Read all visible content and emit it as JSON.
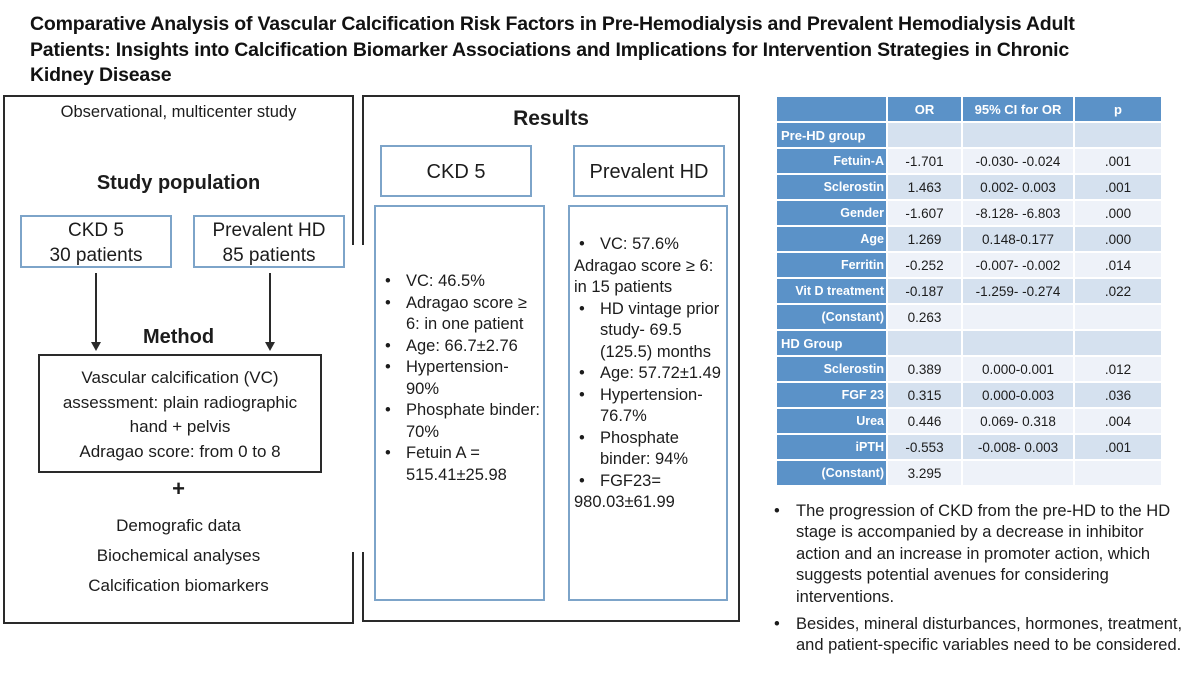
{
  "title_lines": [
    "Comparative Analysis of Vascular Calcification Risk Factors in Pre-Hemodialysis and Prevalent Hemodialysis Adult",
    "Patients: Insights into Calcification Biomarker Associations and Implications for Intervention Strategies in Chronic",
    "Kidney Disease"
  ],
  "left_panel": {
    "subtitle": "Observational, multicenter study",
    "study_population_heading": "Study population",
    "group_boxes": [
      {
        "line1": "CKD 5",
        "line2": "30 patients"
      },
      {
        "line1": "Prevalent HD",
        "line2": "85 patients"
      }
    ],
    "method_heading": "Method",
    "method_box_lines": [
      "Vascular calcification (VC)",
      "assessment: plain radiographic",
      "hand + pelvis",
      "Adragao score:  from 0 to 8"
    ],
    "plus_sign": "+",
    "additional_items": [
      "Demografic data",
      "Biochemical analyses",
      "Calcification biomarkers"
    ]
  },
  "results_panel": {
    "heading": "Results",
    "columns": [
      {
        "header": "CKD 5",
        "items": [
          {
            "bullet": true,
            "text": "VC: 46.5%"
          },
          {
            "bullet": true,
            "text": "Adragao score ≥ 6: in one patient"
          },
          {
            "bullet": true,
            "text": "Age: 66.7±2.76"
          },
          {
            "bullet": true,
            "text": "Hypertension-90%"
          },
          {
            "bullet": true,
            "text": "Phosphate binder: 70%"
          },
          {
            "bullet": true,
            "text": "Fetuin A = 515.41±25.98"
          }
        ]
      },
      {
        "header": "Prevalent HD",
        "items": [
          {
            "bullet": true,
            "text": "VC: 57.6%"
          },
          {
            "bullet": false,
            "text": "Adragao score ≥ 6: in 15 patients"
          },
          {
            "bullet": true,
            "text": "HD vintage prior study- 69.5 (125.5) months"
          },
          {
            "bullet": true,
            "text": "Age: 57.72±1.49"
          },
          {
            "bullet": true,
            "text": "Hypertension- 76.7%"
          },
          {
            "bullet": true,
            "text": "Phosphate binder: 94%"
          },
          {
            "bullet": true,
            "text": "FGF23="
          },
          {
            "bullet": false,
            "text": "980.03±61.99"
          }
        ]
      }
    ]
  },
  "table": {
    "headers": [
      "",
      "OR",
      "95% CI for OR",
      "p"
    ],
    "rows": [
      {
        "type": "section",
        "label": "Pre-HD group",
        "or": "",
        "ci": "",
        "p": ""
      },
      {
        "type": "data",
        "label": "Fetuin-A",
        "or": "-1.701",
        "ci": "-0.030- -0.024",
        "p": ".001"
      },
      {
        "type": "data",
        "label": "Sclerostin",
        "or": "1.463",
        "ci": "0.002- 0.003",
        "p": ".001"
      },
      {
        "type": "data",
        "label": "Gender",
        "or": "-1.607",
        "ci": "-8.128- -6.803",
        "p": ".000"
      },
      {
        "type": "data",
        "label": "Age",
        "or": "1.269",
        "ci": "0.148-0.177",
        "p": ".000"
      },
      {
        "type": "data",
        "label": "Ferritin",
        "or": "-0.252",
        "ci": "-0.007- -0.002",
        "p": ".014"
      },
      {
        "type": "data",
        "label": "Vit D treatment",
        "or": "-0.187",
        "ci": "-1.259- -0.274",
        "p": ".022"
      },
      {
        "type": "data",
        "label": "(Constant)",
        "or": "0.263",
        "ci": "",
        "p": ""
      },
      {
        "type": "section",
        "label": "HD Group",
        "or": "",
        "ci": "",
        "p": ""
      },
      {
        "type": "data",
        "label": "Sclerostin",
        "or": "0.389",
        "ci": "0.000-0.001",
        "p": ".012"
      },
      {
        "type": "data",
        "label": "FGF 23",
        "or": "0.315",
        "ci": "0.000-0.003",
        "p": ".036"
      },
      {
        "type": "data",
        "label": "Urea",
        "or": "0.446",
        "ci": "0.069- 0.318",
        "p": ".004"
      },
      {
        "type": "data",
        "label": "iPTH",
        "or": "-0.553",
        "ci": "-0.008- 0.003",
        "p": ".001"
      },
      {
        "type": "data",
        "label": "(Constant)",
        "or": "3.295",
        "ci": "",
        "p": ""
      }
    ]
  },
  "conclusions": [
    "The progression of CKD from the pre-HD to the HD stage is accompanied by a decrease in inhibitor action and an increase in promoter action, which suggests potential avenues for considering interventions.",
    "Besides, mineral disturbances, hormones, treatment, and patient-specific variables need to be considered."
  ],
  "bullet_glyph": "•",
  "colors": {
    "table_header_blue": "#5b92c8",
    "band_light_blue": "#d5e1ef",
    "band_white": "#eef2f9",
    "box_border_blue": "#7da4c9",
    "panel_line": "#2a2a2a"
  }
}
